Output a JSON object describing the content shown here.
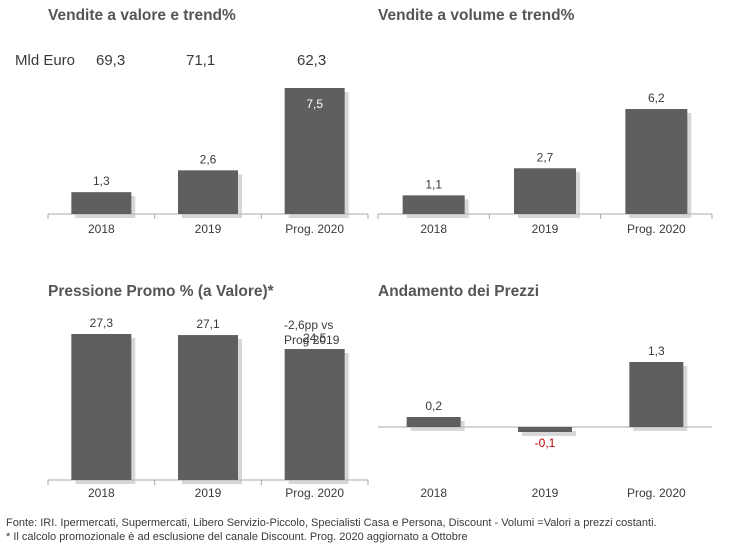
{
  "chart_data": [
    {
      "type": "bar",
      "title": "Vendite a valore e trend%",
      "categories": [
        "2018",
        "2019",
        "Prog. 2020"
      ],
      "values": [
        1.3,
        2.6,
        7.5
      ],
      "value_labels": [
        "1,3",
        "2,6",
        "7,5"
      ],
      "unit_label": "Mld Euro",
      "totals": [
        "69,3",
        "71,1",
        "62,3"
      ],
      "ylim": [
        0,
        7.5
      ]
    },
    {
      "type": "bar",
      "title": "Vendite a volume e trend%",
      "categories": [
        "2018",
        "2019",
        "Prog. 2020"
      ],
      "values": [
        1.1,
        2.7,
        6.2
      ],
      "value_labels": [
        "1,1",
        "2,7",
        "6,2"
      ],
      "ylim": [
        0,
        6.2
      ]
    },
    {
      "type": "bar",
      "title": "Pressione Promo % (a Valore)*",
      "categories": [
        "2018",
        "2019",
        "Prog. 2020"
      ],
      "values": [
        27.3,
        27.1,
        24.5
      ],
      "value_labels": [
        "27,3",
        "27,1",
        "24,5"
      ],
      "annotation": [
        "-2,6pp vs",
        "Prog 2019"
      ],
      "ylim": [
        0,
        27.3
      ]
    },
    {
      "type": "bar",
      "title": "Andamento dei Prezzi",
      "categories": [
        "2018",
        "2019",
        "Prog. 2020"
      ],
      "values": [
        0.2,
        -0.1,
        1.3
      ],
      "value_labels": [
        "0,2",
        "-0,1",
        "1,3"
      ],
      "negative_color": "#c00000",
      "ylim": [
        -0.1,
        1.3
      ]
    }
  ],
  "colors": {
    "bar": "#5f5f5f",
    "shadow": "#bdbdbd",
    "axis": "#aaaaaa",
    "text": "#3a3a3a"
  },
  "footer": {
    "line1": "Fonte: IRI. Ipermercati, Supermercati, Libero Servizio-Piccolo, Specialisti Casa e Persona, Discount - Volumi =Valori a prezzi costanti.",
    "line2": "* Il calcolo promozionale è ad esclusione del canale Discount. Prog. 2020 aggiornato a Ottobre"
  }
}
